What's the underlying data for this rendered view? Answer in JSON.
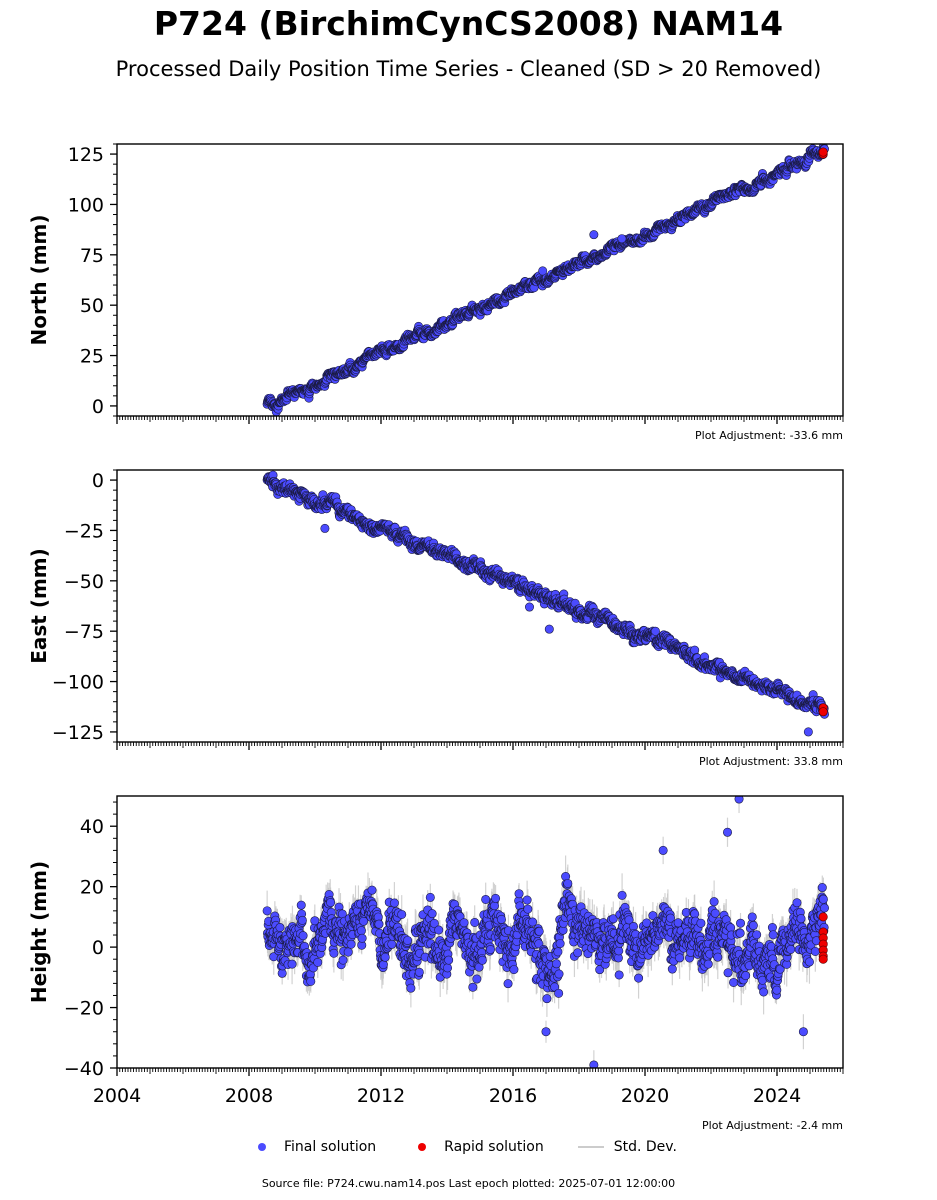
{
  "title": "P724 (BirchimCynCS2008) NAM14",
  "subtitle": "Processed Daily Position Time Series - Cleaned (SD > 20 Removed)",
  "colors": {
    "final": "#4b4bff",
    "final_edge": "#1a1a40",
    "rapid": "#ee0000",
    "stddev": "#c8c8c8"
  },
  "legend": {
    "final": "Final solution",
    "rapid": "Rapid solution",
    "stddev": "Std. Dev."
  },
  "source_text": "Source file: P724.cwu.nam14.pos  Last epoch plotted: 2025-07-01 12:00:00",
  "chart_data": [
    {
      "type": "scatter",
      "component": "north",
      "ylabel": "North (mm)",
      "ylim": [
        -5,
        130
      ],
      "yticks": [
        0,
        25,
        50,
        75,
        100,
        125
      ],
      "xlim": [
        2004.0,
        2026.0
      ],
      "adjustment": "Plot Adjustment: -33.6 mm",
      "trend": {
        "x": [
          2008.55,
          2025.45
        ],
        "y": [
          0,
          126
        ]
      },
      "outliers": [
        {
          "x": 2018.45,
          "y": 85
        },
        {
          "x": 2016.9,
          "y": 67
        },
        {
          "x": 2019.3,
          "y": 83
        }
      ],
      "rapid": {
        "x": 2025.4,
        "y": [
          125,
          126
        ]
      },
      "scatter_sd": 1.5,
      "std_dev": 1.2
    },
    {
      "type": "scatter",
      "component": "east",
      "ylabel": "East (mm)",
      "ylim": [
        -130,
        5
      ],
      "yticks": [
        0,
        -25,
        -50,
        -75,
        -100,
        -125
      ],
      "xlim": [
        2004.0,
        2026.0
      ],
      "adjustment": "Plot Adjustment: 33.8 mm",
      "trend": {
        "x": [
          2008.55,
          2025.45
        ],
        "y": [
          0,
          -115
        ]
      },
      "outliers": [
        {
          "x": 2024.95,
          "y": -125
        },
        {
          "x": 2016.5,
          "y": -63
        },
        {
          "x": 2017.1,
          "y": -74
        },
        {
          "x": 2010.3,
          "y": -24
        }
      ],
      "rapid": {
        "x": 2025.4,
        "y": [
          -113,
          -115
        ]
      },
      "scatter_sd": 2.5,
      "std_dev": 1.5
    },
    {
      "type": "scatter",
      "component": "height",
      "ylabel": "Height (mm)",
      "ylim": [
        -40,
        50
      ],
      "yticks": [
        -40,
        -20,
        0,
        20,
        40
      ],
      "xlim": [
        2004.0,
        2026.0
      ],
      "xticks": [
        2004,
        2008,
        2012,
        2016,
        2020,
        2024
      ],
      "adjustment": "Plot Adjustment: -2.4 mm",
      "trend": {
        "x": [
          2008.55,
          2025.45
        ],
        "y": [
          3,
          3
        ]
      },
      "outliers": [
        {
          "x": 2022.85,
          "y": 49
        },
        {
          "x": 2018.45,
          "y": -39
        },
        {
          "x": 2017.0,
          "y": -28
        },
        {
          "x": 2024.8,
          "y": -28
        },
        {
          "x": 2022.5,
          "y": 38
        },
        {
          "x": 2020.55,
          "y": 32
        }
      ],
      "rapid": {
        "x": 2025.4,
        "y": [
          10,
          5,
          3,
          1,
          -1,
          -3,
          -4
        ]
      },
      "scatter_sd": 6.0,
      "std_dev": 5.0
    }
  ]
}
